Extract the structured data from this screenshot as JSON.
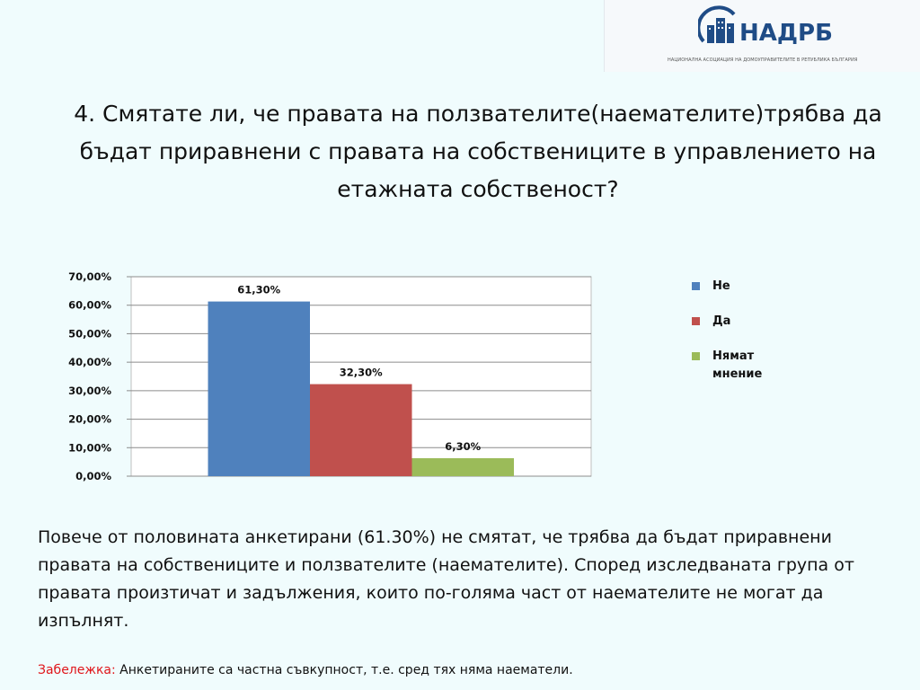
{
  "logo": {
    "text": "НАДРБ",
    "subtitle": "НАЦИОНАЛНА АСОЦИАЦИЯ НА ДОМОУПРАВИТЕЛИТЕ В РЕПУБЛИКА БЪЛГАРИЯ"
  },
  "title": "4. Смятате ли, че правата на ползвателите(наемателите)трябва да бъдат приравнени с правата на собствениците в управлението на етажната собственост?",
  "chart_data": {
    "type": "bar",
    "categories": [
      ""
    ],
    "series": [
      {
        "name": "Не",
        "values": [
          61.3
        ],
        "label": "61,30%",
        "color": "#4f81bd"
      },
      {
        "name": "Да",
        "values": [
          32.3
        ],
        "label": "32,30%",
        "color": "#c0504d"
      },
      {
        "name": "Нямат мнение",
        "values": [
          6.3
        ],
        "label": "6,30%",
        "color": "#9bbb59"
      }
    ],
    "yticks": [
      "0,00%",
      "10,00%",
      "20,00%",
      "30,00%",
      "40,00%",
      "50,00%",
      "60,00%",
      "70,00%"
    ],
    "ylim": [
      0,
      70
    ],
    "grid": true,
    "legend": "right",
    "legend_lines": [
      [
        "Не"
      ],
      [
        "Да"
      ],
      [
        "Нямат",
        "мнение"
      ]
    ]
  },
  "body_text": "Повече от половината анкетирани (61.30%) не смятат, че трябва да бъдат приравнени правата на собствениците и ползвателите (наемателите). Според изследваната група от правата произтичат и задължения, които по-голяма част от наемателите не могат да изпълнят.",
  "note": {
    "label": "Забележка:",
    "text": " Анкетираните са частна съвкупност, т.е. сред тях няма наематели."
  }
}
